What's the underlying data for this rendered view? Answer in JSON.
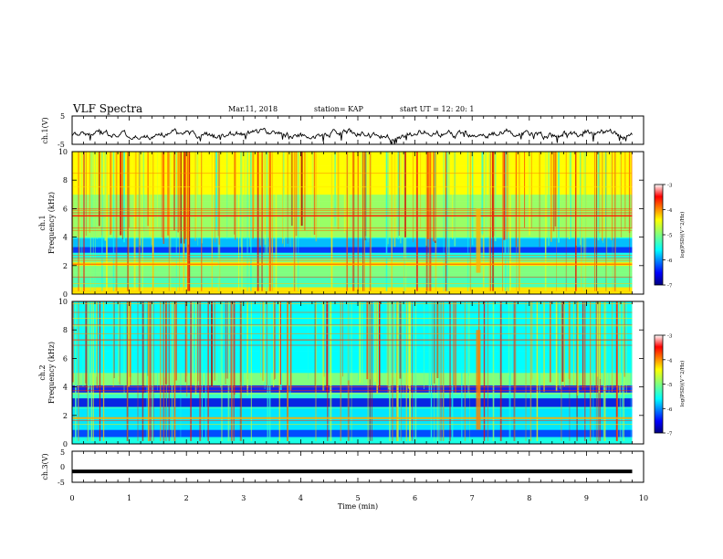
{
  "header": {
    "title": "VLF Spectra",
    "date": "Mar.11, 2018",
    "station": "station= KAP",
    "start": "start  UT =   12: 20: 1"
  },
  "colorbar": {
    "label": "log(PSD)(V^2/Hz)",
    "ticks": [
      "-3",
      "-4",
      "-5",
      "-6",
      "-7"
    ]
  },
  "chart_data": [
    {
      "type": "line",
      "panel": "ch1-time-series",
      "ylabel": "ch.1(V)",
      "ylim": [
        -5,
        5
      ],
      "yticks": [
        "5",
        "-5"
      ],
      "xlim": [
        0,
        10
      ],
      "approx_level": [
        0,
        9.8,
        -1.5
      ]
    },
    {
      "type": "heatmap",
      "panel": "ch1-spectrogram",
      "ylabel_line1": "ch.1",
      "ylabel_line2": "Frequency (kHz)",
      "ylim": [
        0,
        10
      ],
      "yticks": [
        "0",
        "2",
        "4",
        "6",
        "8",
        "10"
      ],
      "xlim": [
        0,
        10
      ],
      "data_end_min": 9.8,
      "colormap": "jet",
      "clim": [
        -7,
        -3
      ],
      "features": [
        {
          "band_khz": [
            2.9,
            3.3
          ],
          "level": -6.4
        },
        {
          "band_khz": [
            3.3,
            3.9
          ],
          "level": -5.8
        },
        {
          "line_khz": 5.5,
          "level": -3.6
        },
        {
          "line_khz": 2.1,
          "level": -4.0
        },
        {
          "event_min": 7.1,
          "band_khz": [
            1.5,
            6.0
          ],
          "level": -4.2
        }
      ]
    },
    {
      "type": "heatmap",
      "panel": "ch2-spectrogram",
      "ylabel_line1": "ch.2",
      "ylabel_line2": "Frequency (kHz)",
      "ylim": [
        0,
        10
      ],
      "yticks": [
        "0",
        "2",
        "4",
        "6",
        "8",
        "10"
      ],
      "xlim": [
        0,
        10
      ],
      "data_end_min": 9.8,
      "colormap": "jet",
      "clim": [
        -7,
        -3
      ],
      "features": [
        {
          "band_khz": [
            2.6,
            3.2
          ],
          "level": -6.6
        },
        {
          "band_khz": [
            3.6,
            4.1
          ],
          "level": -6.5
        },
        {
          "line_khz": 1.8,
          "level": -4.2
        },
        {
          "event_min": 7.1,
          "band_khz": [
            1.0,
            8.0
          ],
          "level": -4.0
        }
      ]
    },
    {
      "type": "line",
      "panel": "ch3-time-series",
      "ylabel": "ch.3(V)",
      "ylim": [
        -5,
        5
      ],
      "yticks": [
        "5",
        "0",
        "-5"
      ],
      "xlim": [
        0,
        10
      ],
      "constant_value": -1.5,
      "data_end_min": 9.8
    }
  ],
  "xaxis": {
    "label": "Time (min)",
    "ticks": [
      "0",
      "1",
      "2",
      "3",
      "4",
      "5",
      "6",
      "7",
      "8",
      "9",
      "10"
    ]
  }
}
